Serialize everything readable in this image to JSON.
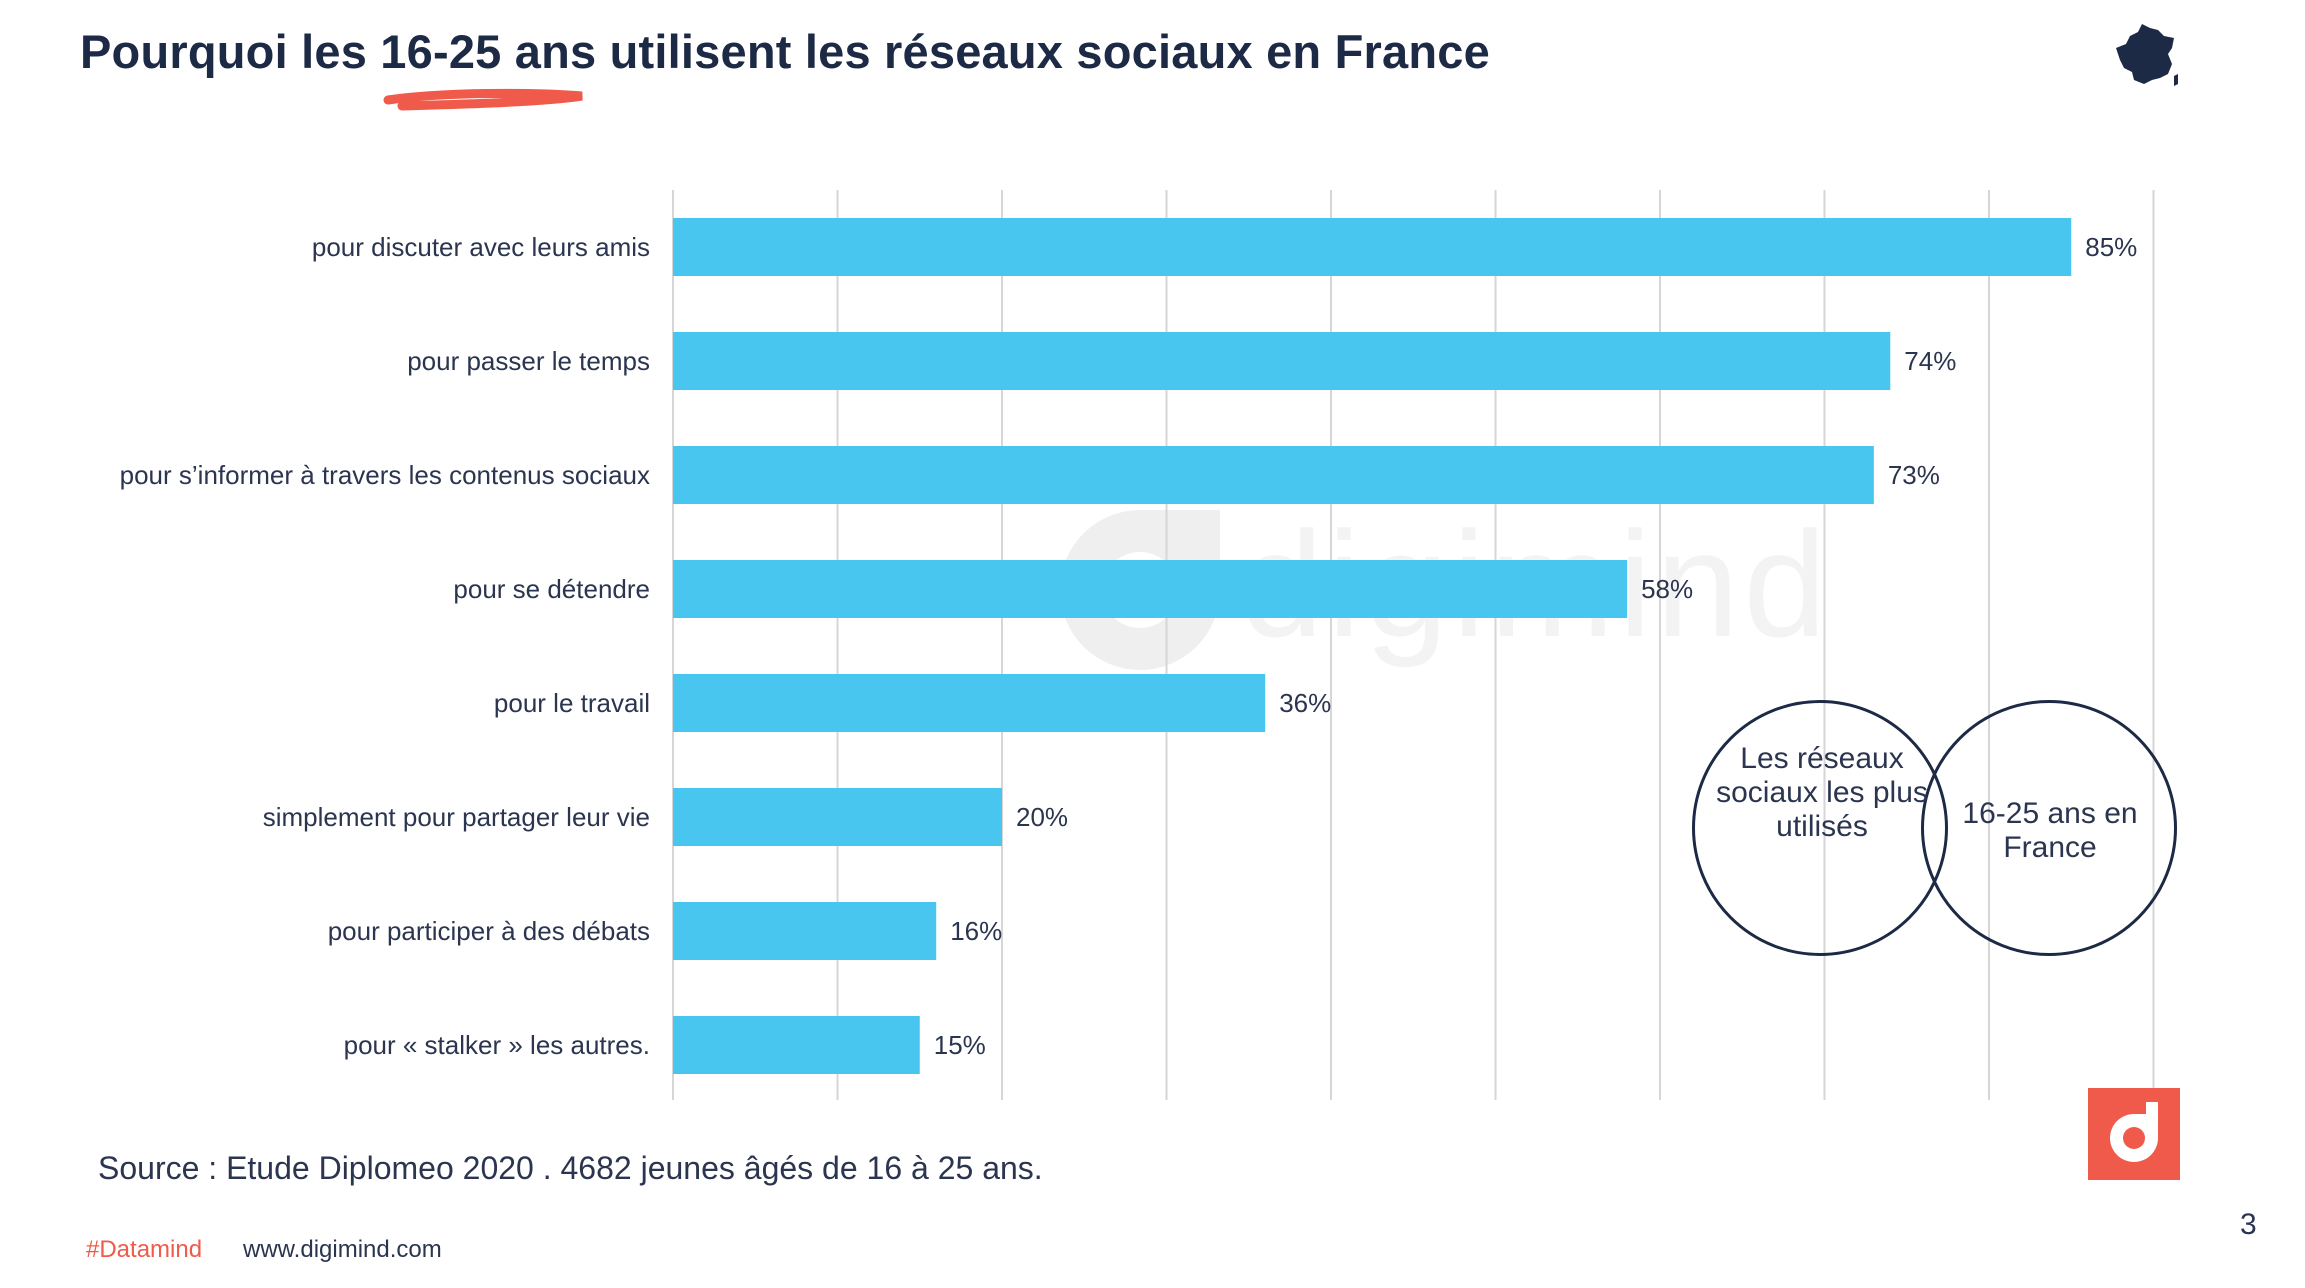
{
  "header": {
    "title": "Pourquoi les 16-25 ans utilisent les réseaux sociaux en France"
  },
  "icons": {
    "france_map": "france-map-icon",
    "brand_logo": "digimind-logo-icon",
    "watermark": "digimind-watermark"
  },
  "watermark": {
    "text": "digimind"
  },
  "colors": {
    "bar": "#48c6ef",
    "title": "#1d2a45",
    "accent": "#f05a4a",
    "grid": "#d6d6d6"
  },
  "chart_data": {
    "type": "bar",
    "orientation": "horizontal",
    "title": "",
    "xlabel": "",
    "ylabel": "",
    "categories": [
      "pour discuter avec leurs amis",
      "pour passer le temps",
      "pour s’informer à travers les contenus sociaux",
      "pour se détendre",
      "pour le travail",
      "simplement pour partager leur vie",
      "pour participer à des débats",
      "pour « stalker » les autres."
    ],
    "values": [
      85,
      74,
      73,
      58,
      36,
      20,
      16,
      15
    ],
    "value_labels": [
      "85%",
      "74%",
      "73%",
      "58%",
      "36%",
      "20%",
      "16%",
      "15%"
    ],
    "xlim": [
      0,
      90
    ],
    "grid": true,
    "grid_step": 10,
    "legend": "none"
  },
  "venn": {
    "left_text": "Les réseaux sociaux les plus utilisés",
    "right_text": "16-25 ans en France"
  },
  "footer": {
    "source": "Source : Etude Diplomeo 2020 . 4682 jeunes âgés de 16 à 25 ans.",
    "hashtag": "#Datamind",
    "website": "www.digimind.com",
    "page_number": "3"
  }
}
